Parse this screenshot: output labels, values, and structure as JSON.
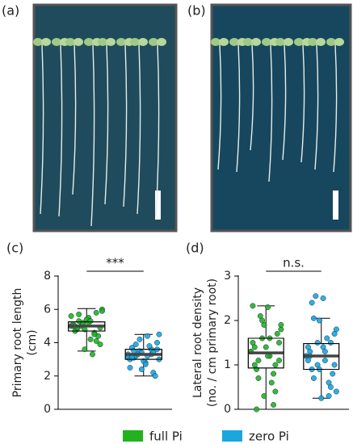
{
  "figure_panels": [
    "(a)",
    "(b)"
  ],
  "chart_data": [
    {
      "type": "box",
      "panel_label": "(c)",
      "y_label": [
        "Primary root length",
        "(cm)"
      ],
      "annotation": "***",
      "ylim": [
        0,
        8
      ],
      "yticks": [
        0,
        2,
        4,
        6,
        8
      ],
      "series": [
        {
          "name": "full Pi",
          "color": "#22b21f",
          "box": {
            "min": 3.5,
            "q1": 4.7,
            "median": 5.0,
            "q3": 5.25,
            "max": 6.05
          },
          "points": [
            5.0,
            4.8,
            5.2,
            5.5,
            4.6,
            4.9,
            5.1,
            5.3,
            3.6,
            4.2,
            5.8,
            6.0,
            4.7,
            5.0,
            5.4,
            3.3,
            4.4,
            5.6,
            4.9,
            5.1,
            5.2,
            4.5,
            3.9,
            5.0,
            5.7,
            4.8,
            5.3,
            4.1,
            5.9,
            5.0
          ]
        },
        {
          "name": "zero Pi",
          "color": "#1ba6e0",
          "box": {
            "min": 2.0,
            "q1": 3.0,
            "median": 3.3,
            "q3": 3.6,
            "max": 4.5
          },
          "points": [
            3.3,
            3.1,
            3.5,
            2.8,
            3.6,
            4.0,
            2.5,
            3.2,
            3.4,
            4.4,
            2.2,
            3.0,
            3.7,
            3.3,
            2.9,
            3.8,
            2.0,
            3.1,
            3.5,
            4.2,
            2.7,
            3.3,
            3.6,
            3.0,
            3.9,
            2.4,
            3.2,
            3.4,
            4.5,
            3.1
          ]
        }
      ]
    },
    {
      "type": "box",
      "panel_label": "(d)",
      "y_label": [
        "Lateral root density",
        "(no. / cm primary root)"
      ],
      "annotation": "n.s.",
      "ylim": [
        0,
        3
      ],
      "yticks": [
        0,
        1,
        2,
        3
      ],
      "series": [
        {
          "name": "full Pi",
          "color": "#22b21f",
          "box": {
            "min": 0.0,
            "q1": 0.93,
            "median": 1.27,
            "q3": 1.6,
            "max": 2.33
          },
          "points": [
            1.3,
            0.9,
            1.6,
            2.3,
            0.1,
            1.1,
            1.5,
            0.7,
            1.9,
            1.2,
            0.4,
            1.8,
            1.0,
            2.1,
            1.4,
            0.6,
            1.7,
            1.3,
            0.0,
            2.0,
            1.2,
            0.8,
            1.5,
            2.33,
            1.1,
            0.3,
            1.6,
            1.0,
            1.9,
            1.4
          ]
        },
        {
          "name": "zero Pi",
          "color": "#1ba6e0",
          "box": {
            "min": 0.25,
            "q1": 0.9,
            "median": 1.2,
            "q3": 1.48,
            "max": 2.05
          },
          "points": [
            1.2,
            0.9,
            1.5,
            2.5,
            0.3,
            1.0,
            1.4,
            0.7,
            2.0,
            1.1,
            0.5,
            1.8,
            1.3,
            2.55,
            0.25,
            1.6,
            0.8,
            1.2,
            2.4,
            1.0,
            1.4,
            0.6,
            1.7,
            1.1,
            2.05,
            0.9,
            1.3,
            1.5,
            0.4,
            1.2
          ]
        }
      ]
    }
  ]
}
